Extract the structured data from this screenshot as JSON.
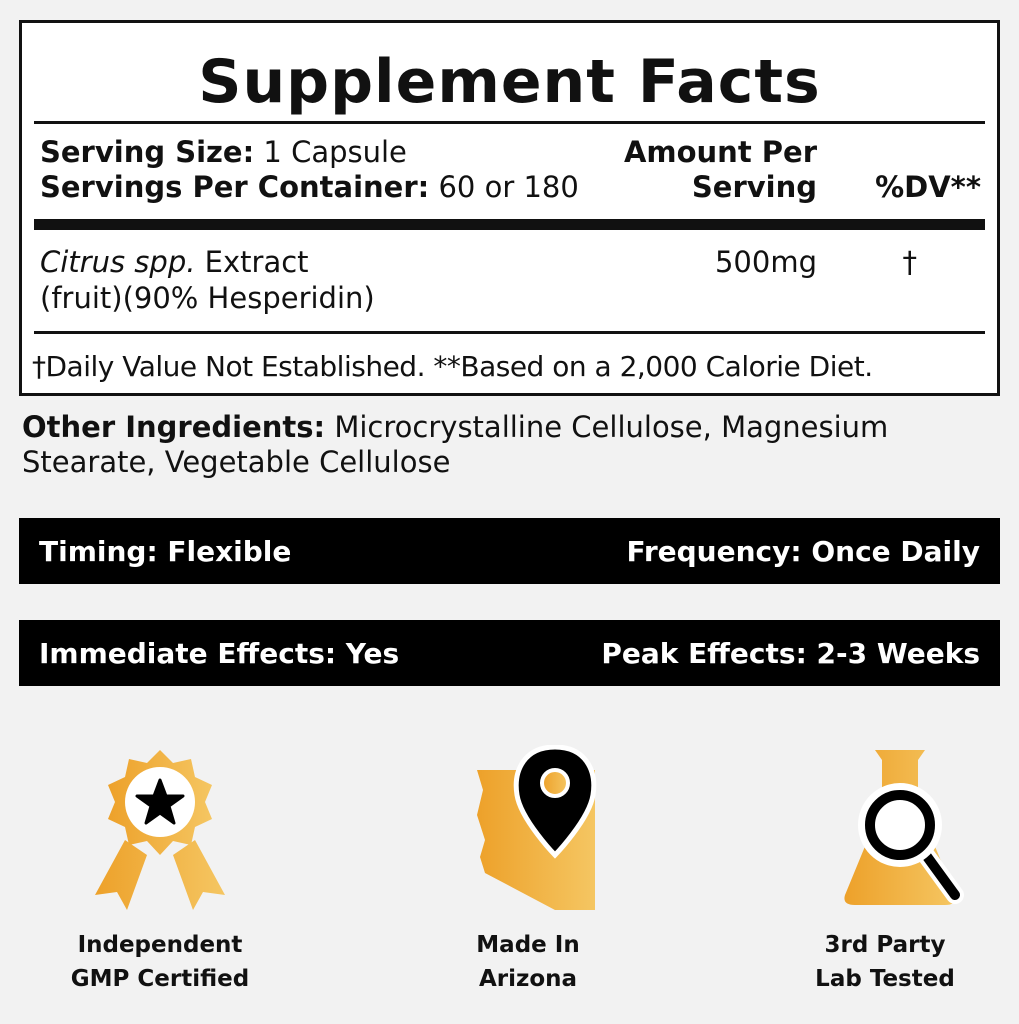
{
  "facts": {
    "title": "Supplement Facts",
    "serving_size_label": "Serving Size:",
    "serving_size_value": " 1 Capsule",
    "servings_label": "Servings Per Container:",
    "servings_value": " 60 or 180",
    "amount_header_1": "Amount Per",
    "amount_header_2": "Serving",
    "dv_header": "%DV**",
    "ingredient_italic_1": "Citrus spp.",
    "ingredient_rest_1": " Extract",
    "ingredient_line_2": "(fruit)(90% Hesperidin)",
    "ingredient_amount": "500mg",
    "ingredient_dv": "†",
    "footnote": "†Daily Value Not Established. **Based on a 2,000 Calorie Diet."
  },
  "other_ingredients": {
    "label": "Other Ingredients:",
    "value": " Microcrystalline Cellulose, Magnesium Stearate, Vegetable Cellulose"
  },
  "bars": [
    {
      "left": "Timing: Flexible",
      "right": "Frequency: Once Daily"
    },
    {
      "left": "Immediate Effects: Yes",
      "right": "Peak Effects: 2-3 Weeks"
    }
  ],
  "badges": [
    {
      "icon": "award-ribbon-icon",
      "line1": "Independent",
      "line2": "GMP Certified"
    },
    {
      "icon": "arizona-map-pin-icon",
      "line1": "Made In",
      "line2": "Arizona"
    },
    {
      "icon": "flask-magnifier-icon",
      "line1": "3rd Party",
      "line2": "Lab Tested"
    }
  ],
  "colors": {
    "accent_dark": "#eda12a",
    "accent_light": "#f5c662",
    "bar": "#000000"
  }
}
